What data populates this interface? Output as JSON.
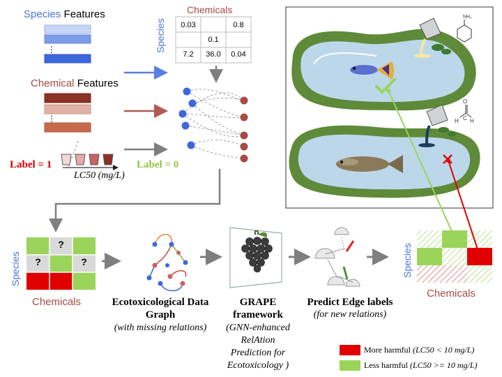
{
  "colors": {
    "species_blue": "#3b6fdb",
    "chemical_red": "#a64a44",
    "label_red": "#cc0000",
    "label_green": "#8dc63f",
    "harmful_red": "#e00000",
    "less_green": "#9bd45a",
    "grey_arrow": "#7f7f7f"
  },
  "features": {
    "species_word": "Species",
    "species_rest": " Features",
    "chemical_word": "Chemical",
    "chemical_rest": " Features",
    "label_one": "Label = 1",
    "label_zero": "Label = 0",
    "lc50": "LC50 (mg/L)"
  },
  "matrix": {
    "title": "Chemicals",
    "side": "Species",
    "cells": [
      "0.03",
      "",
      "0.8",
      "",
      "0.1",
      "",
      "7.2",
      "36.0",
      "0.04"
    ]
  },
  "pipeline": {
    "species": "Species",
    "chemicals": "Chemicals",
    "q": "?",
    "graph_title_1": "Ecotoxicological Data",
    "graph_title_2": "Graph",
    "graph_sub": "(with missing relations)",
    "grape_1": "GRAPE",
    "grape_2": "framework",
    "grape_3": "(GNN-enhanced",
    "grape_4": "RelAtion",
    "grape_5": "Prediction for",
    "grape_6": "Ecotoxicology )",
    "predict_1": "Predict Edge labels",
    "predict_2": "(for new relations)",
    "result_species": "Species",
    "result_chemicals": "Chemicals"
  },
  "legend": {
    "more_label": "More harmful ",
    "more_cond": "(LC50 < 10 mg/L)",
    "less_label": "Less harmful ",
    "less_cond": "(LC50 >= 10 mg/L)"
  },
  "icons": [
    "pond-illustration",
    "fish-icon",
    "beaker-icon",
    "check-icon",
    "cross-icon",
    "grape-icon",
    "petri-dish-icon",
    "molecule-icon"
  ]
}
